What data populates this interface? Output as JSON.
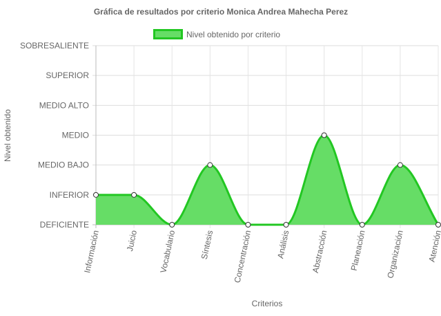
{
  "chart_data": {
    "type": "area",
    "title": "Gráfica de resultados por criterio Monica Andrea Mahecha Perez",
    "xlabel": "Criterios",
    "ylabel": "Nivel obtenido",
    "categories": [
      "Información",
      "Juicio",
      "Vocabulario",
      "Síntesis",
      "Concentración",
      "Análisis",
      "Abstracción",
      "Planeación",
      "Organización",
      "Atención"
    ],
    "y_levels": [
      "DEFICIENTE",
      "INFERIOR",
      "MEDIO BAJO",
      "MEDIO",
      "MEDIO ALTO",
      "SUPERIOR",
      "SOBRESALIENTE"
    ],
    "ylim": [
      0,
      6
    ],
    "series": [
      {
        "name": "Nivel obtenido por criterio",
        "values": [
          1,
          1,
          0,
          2,
          0,
          0,
          3,
          0,
          2,
          0
        ],
        "color": "#22c722",
        "fill": "#66dd66"
      }
    ],
    "legend": "top",
    "grid": true,
    "curve": "smooth"
  }
}
